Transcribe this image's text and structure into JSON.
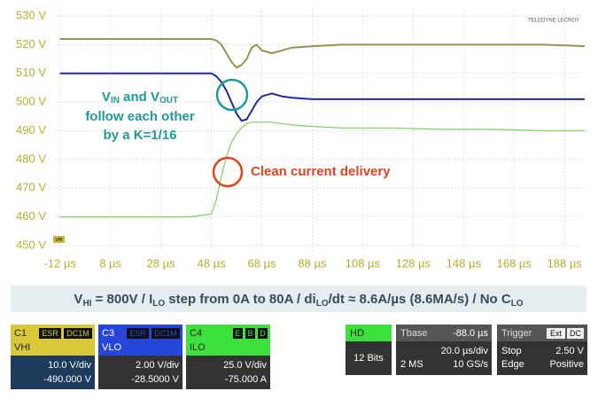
{
  "chart_data": {
    "type": "line",
    "x": [
      -12,
      0,
      20,
      40,
      48,
      50,
      52,
      54,
      56,
      58,
      60,
      62,
      64,
      66,
      68,
      72,
      76,
      80,
      88,
      100,
      120,
      140,
      160,
      180,
      196
    ],
    "series": [
      {
        "name": "VHI",
        "color": "#9c9250",
        "values": [
          522,
          522,
          522,
          522,
          522,
          521.5,
          520,
          517,
          514,
          512,
          513,
          515,
          519,
          520,
          518,
          517,
          518,
          519,
          519.5,
          520,
          520,
          520,
          520,
          520,
          519.5
        ]
      },
      {
        "name": "VLO",
        "color": "#1f2aa0",
        "values": [
          510,
          510,
          510,
          510,
          510,
          509,
          507,
          504,
          500,
          496,
          493.5,
          494,
          497,
          500,
          502,
          503,
          502,
          501.5,
          501,
          501,
          501,
          501,
          501,
          501,
          501
        ]
      },
      {
        "name": "ILO",
        "color": "#7fcf63",
        "values": [
          460,
          460,
          460,
          460,
          461,
          466,
          474,
          481,
          486,
          489,
          491,
          492.5,
          493,
          493,
          493,
          493,
          492.5,
          492,
          491.5,
          491,
          491,
          490.5,
          490.5,
          490,
          490
        ]
      }
    ],
    "xlim": [
      -14,
      196
    ],
    "ylim": [
      447.5,
      532.5
    ],
    "xticks": [
      {
        "value": -12,
        "label": "-12 µs"
      },
      {
        "value": 8,
        "label": "8 µs"
      },
      {
        "value": 28,
        "label": "28 µs"
      },
      {
        "value": 48,
        "label": "48 µs"
      },
      {
        "value": 68,
        "label": "68 µs"
      },
      {
        "value": 88,
        "label": "88 µs"
      },
      {
        "value": 108,
        "label": "108 µs"
      },
      {
        "value": 128,
        "label": "128 µs"
      },
      {
        "value": 148,
        "label": "148 µs"
      },
      {
        "value": 168,
        "label": "168 µs"
      },
      {
        "value": 188,
        "label": "188 µs"
      }
    ],
    "yticks": [
      {
        "value": 450,
        "label": "450 V"
      },
      {
        "value": 460,
        "label": "460 V"
      },
      {
        "value": 470,
        "label": "470 V"
      },
      {
        "value": 480,
        "label": "480 V"
      },
      {
        "value": 490,
        "label": "490 V"
      },
      {
        "value": 500,
        "label": "500 V"
      },
      {
        "value": 510,
        "label": "510 V"
      },
      {
        "value": 520,
        "label": "520 V"
      },
      {
        "value": 530,
        "label": "530 V"
      }
    ],
    "grid": true,
    "annotations": {
      "tracking": [
        "V",
        "IN",
        " and V",
        "OUT",
        "follow each other",
        "by a K=1/16"
      ],
      "current": "Clean current delivery"
    },
    "marker_label": "VHI",
    "logo": "TELEDYNE LECROY"
  },
  "caption": [
    "V",
    "HI",
    " = 800V   /   I",
    "LO",
    " step from 0A to 80A   /   di",
    "LO",
    "/dt ≈ 8.6A/µs (8.6MA/s)   /   No C",
    "LO"
  ],
  "channels": [
    {
      "id": "C1",
      "tags": [
        "ESR",
        "DC1M"
      ],
      "name": "VHI",
      "scale": "10.0 V/div",
      "offset": "-490.000 V"
    },
    {
      "id": "C3",
      "tags": [
        "ESR",
        "DC1M"
      ],
      "name": "VLO",
      "scale": "2.00 V/div",
      "offset": "-28.5000 V"
    },
    {
      "id": "C4",
      "tags": [
        "E",
        "B",
        "D"
      ],
      "name": "ILO",
      "scale": "25.0 V/div",
      "offset": "-75.000 A"
    }
  ],
  "hd": {
    "mode": "HD",
    "bits": "12 Bits"
  },
  "timebase": {
    "label": "Tbase",
    "delay": "-88.0 µs",
    "scale": "20.0 µs/div",
    "memory": "2 MS",
    "rate": "10 GS/s"
  },
  "trigger": {
    "label": "Trigger",
    "source": "Ext",
    "coupling": "DC",
    "state": "Stop",
    "level": "2.50 V",
    "type": "Edge",
    "slope": "Positive"
  }
}
